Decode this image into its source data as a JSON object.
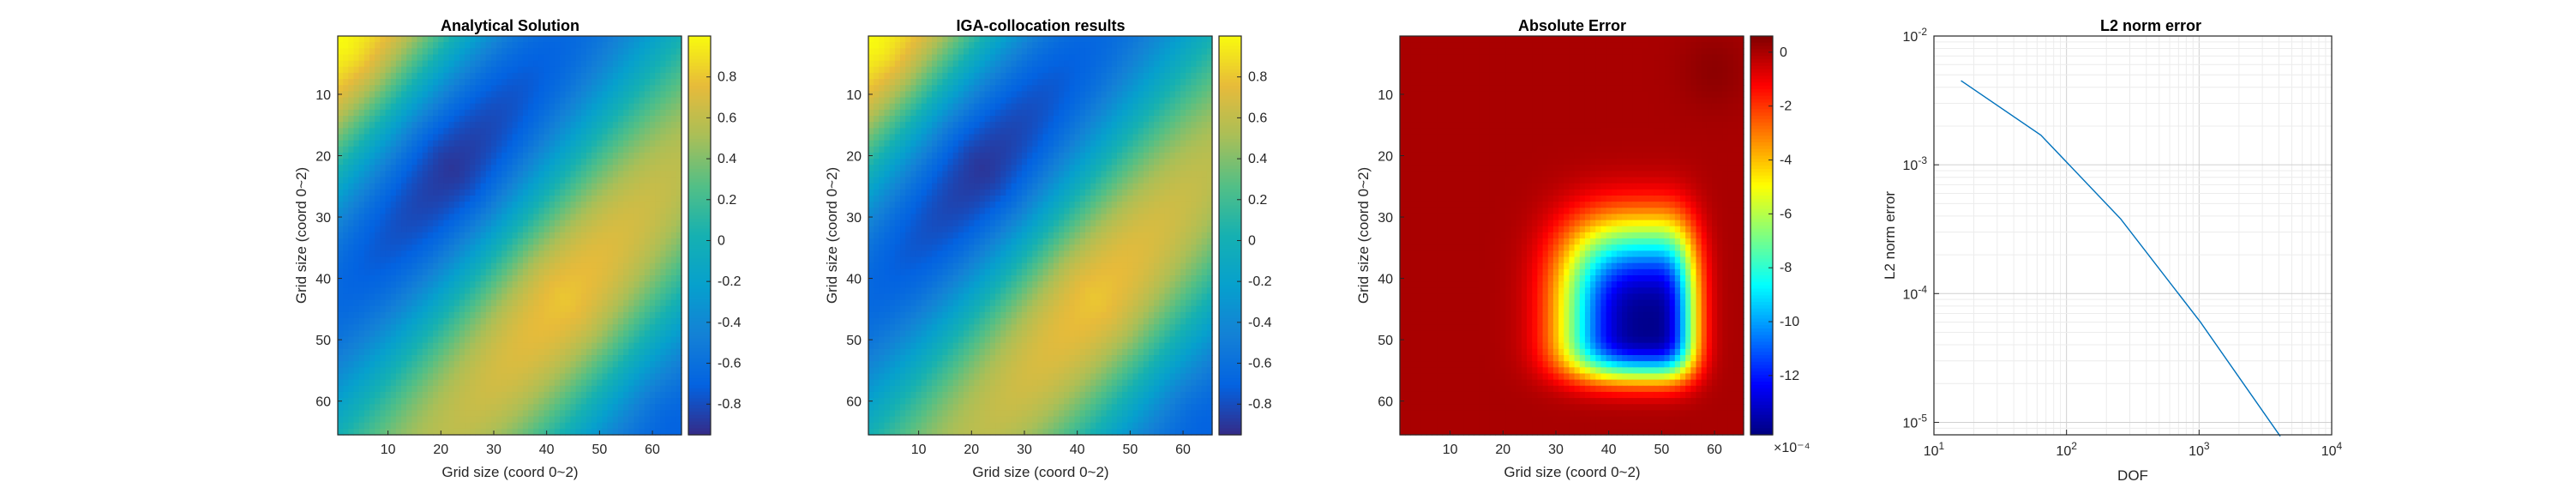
{
  "chart_data": [
    {
      "type": "heatmap",
      "title": "Analytical Solution",
      "xlabel": "Grid size (coord 0~2)",
      "ylabel": "Grid size (coord 0~2)",
      "grid_size": 65,
      "xlim": [
        0.5,
        65.5
      ],
      "ylim": [
        0.5,
        65.5
      ],
      "xticks": [
        10,
        20,
        30,
        40,
        50,
        60
      ],
      "yticks": [
        10,
        20,
        30,
        40,
        50,
        60
      ],
      "colormap": "parula",
      "clim": [
        -0.95,
        1.0
      ],
      "colorbar_ticks": [
        0.8,
        0.6,
        0.4,
        0.2,
        0,
        -0.2,
        -0.4,
        -0.6,
        -0.8
      ],
      "colorbar_exponent": "",
      "corner_values": {
        "top_left": 1.0,
        "top_right": -0.1,
        "bottom_left": -0.1,
        "bottom_right": 0.3
      },
      "min_value": -0.9
    },
    {
      "type": "heatmap",
      "title": "IGA-collocation results",
      "xlabel": "Grid size (coord 0~2)",
      "ylabel": "Grid size (coord 0~2)",
      "grid_size": 65,
      "xlim": [
        0.5,
        65.5
      ],
      "ylim": [
        0.5,
        65.5
      ],
      "xticks": [
        10,
        20,
        30,
        40,
        50,
        60
      ],
      "yticks": [
        10,
        20,
        30,
        40,
        50,
        60
      ],
      "colormap": "parula",
      "clim": [
        -0.95,
        1.0
      ],
      "colorbar_ticks": [
        0.8,
        0.6,
        0.4,
        0.2,
        0,
        -0.2,
        -0.4,
        -0.6,
        -0.8
      ],
      "colorbar_exponent": "",
      "corner_values": {
        "top_left": 1.0,
        "top_right": -0.1,
        "bottom_left": -0.1,
        "bottom_right": 0.3
      },
      "min_value": -0.9
    },
    {
      "type": "heatmap",
      "title": "Absolute Error",
      "xlabel": "Grid size (coord 0~2)",
      "ylabel": "Grid size (coord 0~2)",
      "grid_size": 65,
      "xlim": [
        0.5,
        65.5
      ],
      "ylim": [
        0.5,
        65.5
      ],
      "xticks": [
        10,
        20,
        30,
        40,
        50,
        60
      ],
      "yticks": [
        10,
        20,
        30,
        40,
        50,
        60
      ],
      "colormap": "jet",
      "clim": [
        -14.2,
        0.6
      ],
      "colorbar_ticks": [
        0,
        -2,
        -4,
        -6,
        -8,
        -10,
        -12
      ],
      "colorbar_exponent": "×10⁻⁴",
      "minimum_location": [
        48,
        48
      ],
      "min_value": -14
    },
    {
      "type": "line",
      "title": "L2 norm error",
      "xlabel": "DOF",
      "ylabel": "L2 norm error",
      "xscale": "log",
      "yscale": "log",
      "xlim": [
        10,
        10000
      ],
      "ylim": [
        8e-06,
        0.01
      ],
      "grid": true,
      "xticks": [
        {
          "value": 10,
          "mant": "10",
          "exp": "1"
        },
        {
          "value": 100,
          "mant": "10",
          "exp": "2"
        },
        {
          "value": 1000,
          "mant": "10",
          "exp": "3"
        },
        {
          "value": 10000,
          "mant": "10",
          "exp": "4"
        }
      ],
      "yticks": [
        {
          "value": 0.01,
          "mant": "10",
          "exp": "-2"
        },
        {
          "value": 0.001,
          "mant": "10",
          "exp": "-3"
        },
        {
          "value": 0.0001,
          "mant": "10",
          "exp": "-4"
        },
        {
          "value": 1e-05,
          "mant": "10",
          "exp": "-5"
        }
      ],
      "series": [
        {
          "color": "#0072bd",
          "x": [
            16,
            64,
            256,
            1024,
            4096
          ],
          "y": [
            0.0045,
            0.0017,
            0.00038,
            6e-05,
            7.8e-06
          ]
        }
      ]
    }
  ]
}
